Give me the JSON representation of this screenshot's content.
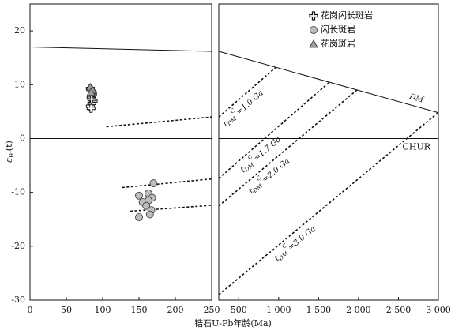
{
  "chart_data": [
    {
      "type": "scatter",
      "x_label": "锆石U-Pb年龄(Ma)",
      "y_label": {
        "main": "ε",
        "sub": "Hf",
        "rest": "(t)"
      },
      "xlim": [
        0,
        250
      ],
      "xticks": [
        0,
        50,
        100,
        150,
        200,
        250
      ],
      "ylim": [
        -30,
        25
      ],
      "yticks": [
        -30,
        -20,
        -10,
        0,
        10,
        20
      ],
      "series": [
        {
          "name": "花岗闪长斑岩",
          "marker": "cross",
          "color": "#111111",
          "x": [
            83,
            85,
            86,
            84,
            87,
            85,
            83,
            86,
            85,
            84
          ],
          "values": [
            9.3,
            8.8,
            8.2,
            7.6,
            7.0,
            6.5,
            6.0,
            8.5,
            7.3,
            5.6
          ]
        },
        {
          "name": "闪长斑岩",
          "marker": "circle",
          "color": "#bdbdbd",
          "x": [
            170,
            150,
            163,
            168,
            155,
            163,
            160,
            167,
            165,
            150
          ],
          "values": [
            -8.3,
            -10.6,
            -10.2,
            -11.0,
            -11.8,
            -11.5,
            -12.5,
            -13.3,
            -14.1,
            -14.6
          ]
        },
        {
          "name": "花岗斑岩",
          "marker": "triangle",
          "color": "#9e9e9e",
          "x": [
            83,
            86,
            84
          ],
          "values": [
            9.5,
            9.0,
            8.6
          ]
        }
      ],
      "lines": [
        {
          "style": "solid",
          "x": [
            0,
            250
          ],
          "y": [
            17,
            16.2
          ]
        },
        {
          "style": "solid",
          "x": [
            0,
            250
          ],
          "y": [
            0,
            0
          ]
        },
        {
          "style": "dashed",
          "x": [
            105,
            250
          ],
          "y": [
            2.2,
            4.0
          ]
        },
        {
          "style": "dashed",
          "x": [
            127,
            250
          ],
          "y": [
            -9.1,
            -7.5
          ]
        },
        {
          "style": "dashed",
          "x": [
            138,
            250
          ],
          "y": [
            -13.5,
            -12.4
          ]
        }
      ]
    },
    {
      "type": "lines",
      "xlim": [
        250,
        3000
      ],
      "xticks": [
        500,
        {
          "value": 1000,
          "label": "1 000"
        },
        {
          "value": 1500,
          "label": "1 500"
        },
        {
          "value": 2000,
          "label": "2 000"
        },
        {
          "value": 2500,
          "label": "2 500"
        },
        {
          "value": 3000,
          "label": "3 000"
        }
      ],
      "ylim": [
        -30,
        25
      ],
      "model_age_symbol": {
        "main": "t",
        "sub": "DM",
        "sup": "C"
      },
      "lines": [
        {
          "style": "solid",
          "label": "DM",
          "x": [
            250,
            3000
          ],
          "y": [
            16.2,
            4.8
          ]
        },
        {
          "style": "solid",
          "label": "CHUR",
          "x": [
            250,
            3000
          ],
          "y": [
            0,
            0
          ]
        },
        {
          "style": "dashed",
          "label": "=1.0 Ga",
          "x": [
            250,
            963
          ],
          "y": [
            4.0,
            13.2
          ]
        },
        {
          "style": "dashed",
          "label": "=1.7 Ga",
          "x": [
            250,
            1646
          ],
          "y": [
            -7.4,
            10.6
          ]
        },
        {
          "style": "dashed",
          "label": "=2.0 Ga",
          "x": [
            250,
            1987
          ],
          "y": [
            -12.5,
            9.1
          ]
        },
        {
          "style": "dashed",
          "label": "=3.0 Ga",
          "x": [
            250,
            3000
          ],
          "y": [
            -29,
            4.85
          ]
        }
      ]
    }
  ]
}
